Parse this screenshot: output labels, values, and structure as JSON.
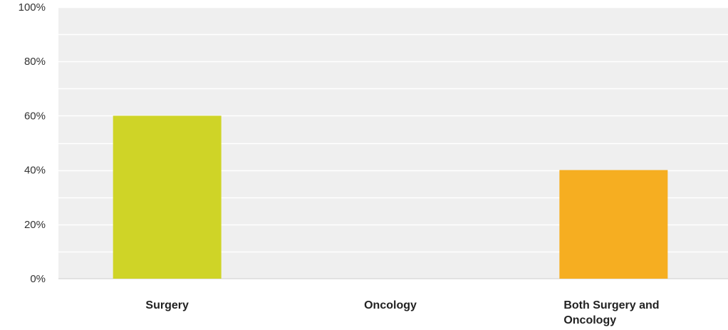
{
  "chart_data": {
    "type": "bar",
    "categories": [
      "Surgery",
      "Oncology",
      "Both Surgery and Oncology"
    ],
    "category_label_lines": [
      [
        "Surgery"
      ],
      [
        "Oncology"
      ],
      [
        "Both Surgery and",
        "Oncology"
      ]
    ],
    "values": [
      60,
      0,
      40
    ],
    "bar_colors": [
      "#cfd427",
      "#5aa9d6",
      "#f6ae21"
    ],
    "y_ticks": [
      "0%",
      "20%",
      "40%",
      "60%",
      "80%",
      "100%"
    ],
    "ylim": [
      0,
      100
    ],
    "grid": true,
    "plot_background": "#efefef",
    "grid_color": "#ffffff"
  }
}
